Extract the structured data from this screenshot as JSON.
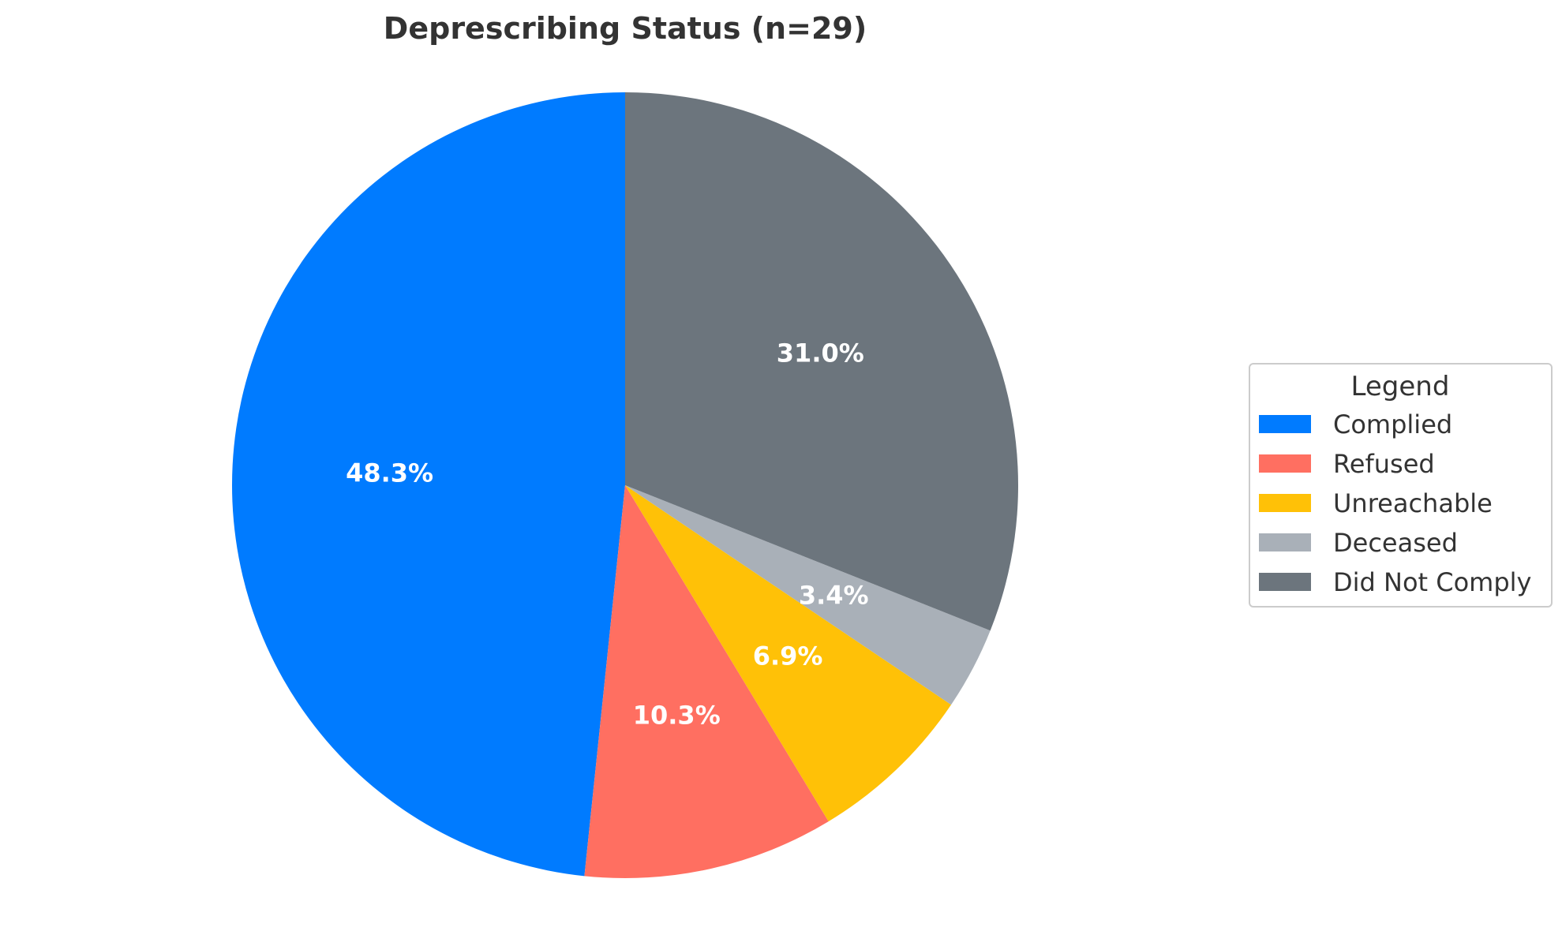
{
  "chart_data": {
    "type": "pie",
    "title": "Deprescribing Status (n=29)",
    "categories": [
      "Complied",
      "Refused",
      "Unreachable",
      "Deceased",
      "Did Not Comply"
    ],
    "values": [
      48.3,
      10.3,
      6.9,
      3.4,
      31.0
    ],
    "value_labels": [
      "48.3%",
      "10.3%",
      "6.9%",
      "3.4%",
      "31.0%"
    ],
    "colors": [
      "#007bff",
      "#ff6f61",
      "#ffc107",
      "#a9b0b8",
      "#6c757d"
    ],
    "start_angle_deg": 90,
    "direction": "counterclockwise",
    "legend": {
      "title": "Legend",
      "placement": "right",
      "entries": [
        "Complied",
        "Refused",
        "Unreachable",
        "Deceased",
        "Did Not Comply"
      ]
    }
  }
}
